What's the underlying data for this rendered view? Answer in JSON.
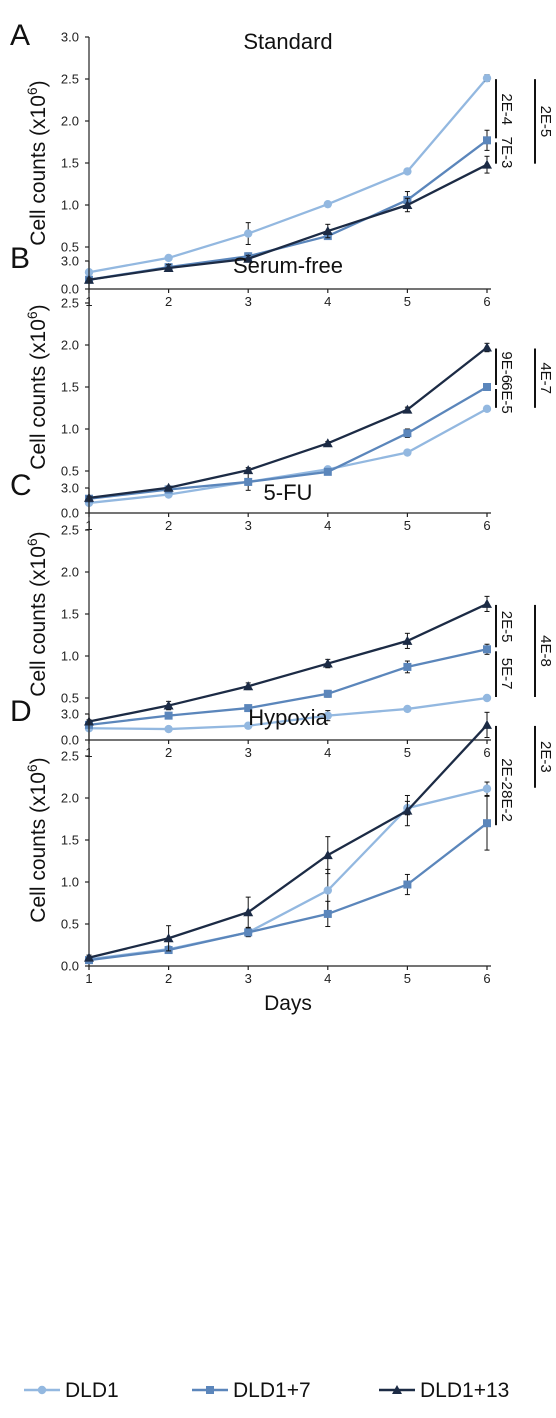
{
  "chart_data": [
    {
      "type": "line",
      "panel": "A",
      "title": "Standard",
      "ylabel": "Cell counts (x10",
      "ylabel_sup": "6",
      "ylabel_close": ")",
      "xlabel": "",
      "ylim": [
        0,
        3.0
      ],
      "ytick_labels": [
        "0.0",
        "0.5",
        "1.0",
        "1.5",
        "2.0",
        "2.5",
        "3.0"
      ],
      "x": [
        1,
        2,
        3,
        4,
        5,
        6
      ],
      "series": [
        {
          "name": "DLD1",
          "values": [
            0.2,
            0.37,
            0.66,
            1.01,
            1.4,
            2.51
          ],
          "errors": [
            0.02,
            0.02,
            0.13,
            0.02,
            0.02,
            0.04
          ]
        },
        {
          "name": "DLD1+7",
          "values": [
            0.11,
            0.26,
            0.39,
            0.63,
            1.06,
            1.77
          ],
          "errors": [
            0.02,
            0.04,
            0.04,
            0.04,
            0.1,
            0.12
          ]
        },
        {
          "name": "DLD1+13",
          "values": [
            0.11,
            0.25,
            0.36,
            0.69,
            1.0,
            1.48
          ],
          "errors": [
            0.02,
            0.04,
            0.04,
            0.08,
            0.08,
            0.1
          ]
        }
      ],
      "pvalues": {
        "inner_top": "2E-4",
        "inner_bottom": "7E-3",
        "outer": "2E-5"
      }
    },
    {
      "type": "line",
      "panel": "B",
      "title": "Serum-free",
      "ylabel": "Cell counts (x10",
      "ylabel_sup": "6",
      "ylabel_close": ")",
      "xlabel": "",
      "ylim": [
        0,
        3.0
      ],
      "ytick_labels": [
        "0.0",
        "0.5",
        "1.0",
        "1.5",
        "2.0",
        "2.5",
        "3.0"
      ],
      "x": [
        1,
        2,
        3,
        4,
        5,
        6
      ],
      "series": [
        {
          "name": "DLD1",
          "values": [
            0.12,
            0.22,
            0.37,
            0.52,
            0.72,
            1.24
          ],
          "errors": [
            0.02,
            0.02,
            0.03,
            0.03,
            0.02,
            0.03
          ]
        },
        {
          "name": "DLD1+7",
          "values": [
            0.17,
            0.28,
            0.37,
            0.49,
            0.95,
            1.5
          ],
          "errors": [
            0.02,
            0.02,
            0.1,
            0.03,
            0.05,
            0.03
          ]
        },
        {
          "name": "DLD1+13",
          "values": [
            0.18,
            0.3,
            0.51,
            0.83,
            1.23,
            1.97
          ],
          "errors": [
            0.02,
            0.02,
            0.03,
            0.02,
            0.03,
            0.05
          ]
        }
      ],
      "pvalues": {
        "inner_top": "9E-6",
        "inner_bottom": "6E-5",
        "outer": "4E-7"
      }
    },
    {
      "type": "line",
      "panel": "C",
      "title": "5-FU",
      "ylabel": "Cell counts (x10",
      "ylabel_sup": "6",
      "ylabel_close": ")",
      "xlabel": "",
      "ylim": [
        0,
        3.0
      ],
      "ytick_labels": [
        "0.0",
        "0.5",
        "1.0",
        "1.5",
        "2.0",
        "2.5",
        "3.0"
      ],
      "x": [
        1,
        2,
        3,
        4,
        5,
        6
      ],
      "series": [
        {
          "name": "DLD1",
          "values": [
            0.14,
            0.13,
            0.17,
            0.29,
            0.37,
            0.5
          ],
          "errors": [
            0.02,
            0.02,
            0.02,
            0.06,
            0.02,
            0.03
          ]
        },
        {
          "name": "DLD1+7",
          "values": [
            0.18,
            0.29,
            0.38,
            0.55,
            0.87,
            1.08
          ],
          "errors": [
            0.02,
            0.02,
            0.02,
            0.04,
            0.07,
            0.06
          ]
        },
        {
          "name": "DLD1+13",
          "values": [
            0.22,
            0.41,
            0.64,
            0.91,
            1.18,
            1.62
          ],
          "errors": [
            0.02,
            0.05,
            0.04,
            0.05,
            0.09,
            0.09
          ]
        }
      ],
      "pvalues": {
        "inner_top": "2E-5",
        "inner_bottom": "5E-7",
        "outer": "4E-8"
      }
    },
    {
      "type": "line",
      "panel": "D",
      "title": "Hypoxia",
      "ylabel": "Cell counts (x10",
      "ylabel_sup": "6",
      "ylabel_close": ")",
      "xlabel": "Days",
      "ylim": [
        0,
        3.0
      ],
      "ytick_labels": [
        "0.0",
        "0.5",
        "1.0",
        "1.5",
        "2.0",
        "2.5",
        "3.0"
      ],
      "x": [
        1,
        2,
        3,
        4,
        5,
        6
      ],
      "series": [
        {
          "name": "DLD1",
          "values": [
            0.08,
            0.2,
            0.4,
            0.9,
            1.88,
            2.11
          ],
          "errors": [
            0.02,
            0.03,
            0.05,
            0.25,
            0.08,
            0.08
          ]
        },
        {
          "name": "DLD1+7",
          "values": [
            0.07,
            0.19,
            0.4,
            0.62,
            0.97,
            1.7
          ],
          "errors": [
            0.02,
            0.03,
            0.05,
            0.15,
            0.12,
            0.32
          ]
        },
        {
          "name": "DLD1+13",
          "values": [
            0.1,
            0.33,
            0.64,
            1.32,
            1.85,
            2.87
          ],
          "errors": [
            0.03,
            0.15,
            0.18,
            0.22,
            0.18,
            0.15
          ]
        }
      ],
      "pvalues": {
        "inner_top": "2E-2",
        "inner_bottom": "8E-2",
        "outer": "2E-3"
      }
    }
  ],
  "x_tick_labels": [
    "1",
    "2",
    "3",
    "4",
    "5",
    "6"
  ],
  "legend": [
    {
      "name": "DLD1",
      "color": "#93b8e0",
      "marker": "circle"
    },
    {
      "name": "DLD1+7",
      "color": "#5b86bb",
      "marker": "square"
    },
    {
      "name": "DLD1+13",
      "color": "#1c2b45",
      "marker": "triangle"
    }
  ],
  "colors": {
    "DLD1": "#93b8e0",
    "DLD1+7": "#5b86bb",
    "DLD1+13": "#1c2b45",
    "axis": "#222222",
    "bracket": "#111111"
  }
}
